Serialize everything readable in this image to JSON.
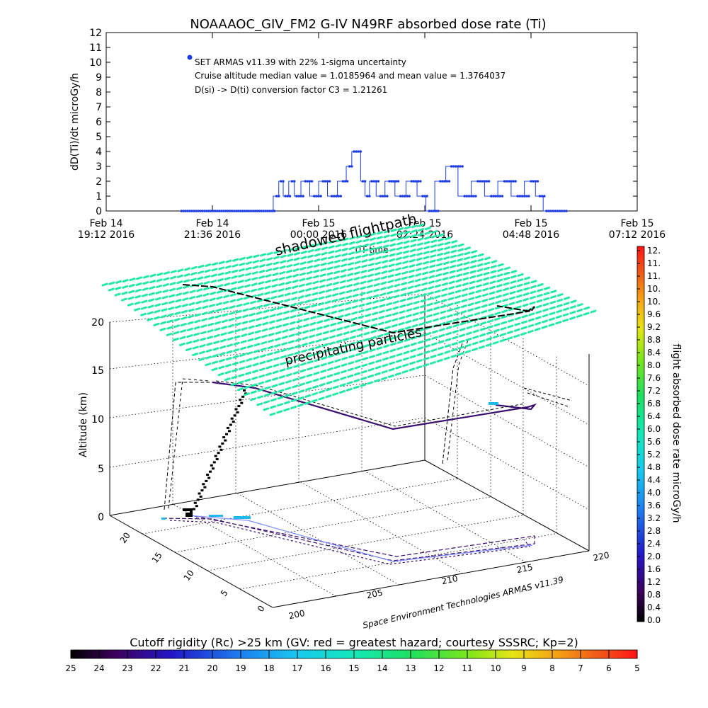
{
  "title": "NOAAAOC_GIV_FM2 G-IV    N49RF  absorbed dose rate (Ti)",
  "chart_data": [
    {
      "type": "line",
      "title": "NOAAAOC_GIV_FM2 G-IV    N49RF  absorbed dose rate (Ti)",
      "ylabel": "dD(Ti)/dt microGy/h",
      "xlabel": "UT time",
      "ylim": [
        0,
        12
      ],
      "y_ticks": [
        "0",
        "1",
        "2",
        "3",
        "4",
        "5",
        "6",
        "7",
        "8",
        "9",
        "10",
        "11",
        "12"
      ],
      "x_ticks": [
        {
          "top": "Feb 14",
          "bottom": "19:12 2016"
        },
        {
          "top": "Feb 14",
          "bottom": "21:36 2016"
        },
        {
          "top": "Feb 15",
          "bottom": "00:00 2016"
        },
        {
          "top": "Feb 15",
          "bottom": "02:24 2016"
        },
        {
          "top": "Feb 15",
          "bottom": "04:48 2016"
        },
        {
          "top": "Feb 15",
          "bottom": "07:12 2016"
        }
      ],
      "xlim_hours": [
        -4.8,
        7.2
      ],
      "annotations": [
        "SET ARMAS v11.39 with 22% 1-sigma uncertainty",
        "Cruise altitude median value = 1.0185964 and mean value = 1.3764037",
        "D(si) -> D(ti) conversion factor C3 = 1.21261"
      ],
      "series_color": "#1f3fe0",
      "series": [
        {
          "x_hours_ut": [
            -3.1,
            -1.1,
            -0.95,
            -0.85,
            -0.75,
            -0.6,
            -0.5,
            -0.3,
            -0.1,
            0.1,
            0.3,
            0.55,
            0.7,
            0.8,
            0.9,
            1.0,
            1.1,
            1.2,
            1.4,
            1.6,
            1.85,
            2.1,
            2.35,
            2.5,
            2.75,
            3.0,
            3.3,
            3.6,
            3.9,
            4.2,
            4.5,
            4.8,
            5.0,
            5.15,
            5.6
          ],
          "y_microGy_h": [
            0,
            0,
            1,
            2,
            1,
            2,
            1,
            2,
            1,
            2,
            1,
            2,
            3,
            4,
            4,
            2,
            1,
            2,
            1,
            2,
            1,
            2,
            1,
            0,
            2,
            3,
            1,
            2,
            1,
            2,
            1,
            2,
            1,
            0,
            0
          ]
        }
      ]
    },
    {
      "type": "scatter",
      "subtype": "3d-trajectory",
      "zlabel": "Altitude (km)",
      "z_ticks": [
        "0",
        "5",
        "10",
        "15",
        "20"
      ],
      "zlim": [
        0,
        20
      ],
      "latitude_ticks": [
        "0",
        "5",
        "10",
        "15",
        "20"
      ],
      "longitude_ticks": [
        "200",
        "205",
        "210",
        "215",
        "220"
      ],
      "annotations": [
        "shadowed flightpath",
        "precipitating particles"
      ],
      "credit": "Space Environment Technologies ARMAS v11.39",
      "route": [
        {
          "lon": 201.5,
          "lat": 21.0
        },
        {
          "lon": 211.0,
          "lat": 6.0
        },
        {
          "lon": 219.5,
          "lat": 12.5
        },
        {
          "lon": 219.5,
          "lat": 11.5
        }
      ],
      "cruise_altitude_km": 13.5
    }
  ],
  "colorbar_right": {
    "label": "flight absorbed dose rate microGy/h",
    "ticks": [
      "0.0",
      "0.4",
      "0.8",
      "1.2",
      "1.6",
      "2.0",
      "2.4",
      "2.8",
      "3.2",
      "3.6",
      "4.0",
      "4.4",
      "4.8",
      "5.2",
      "5.6",
      "6.0",
      "6.4",
      "6.8",
      "7.2",
      "7.6",
      "8.0",
      "8.4",
      "8.8",
      "9.2",
      "9.6",
      "10.",
      "10.",
      "11.",
      "11.",
      "12."
    ]
  },
  "colorbar_bottom": {
    "label": "Cutoff rigidity (Rc) >25 km (GV: red = greatest hazard; courtesy SSSRC; Kp=2)",
    "ticks": [
      "25",
      "24",
      "23",
      "22",
      "21",
      "20",
      "19",
      "18",
      "17",
      "16",
      "15",
      "14",
      "13",
      "12",
      "11",
      "10",
      "9",
      "8",
      "7",
      "6",
      "5"
    ]
  },
  "colors": {
    "rigidity_surface": "#22e8a8",
    "trajectory": "#000000",
    "shadow_path": "#3a0f6e"
  }
}
